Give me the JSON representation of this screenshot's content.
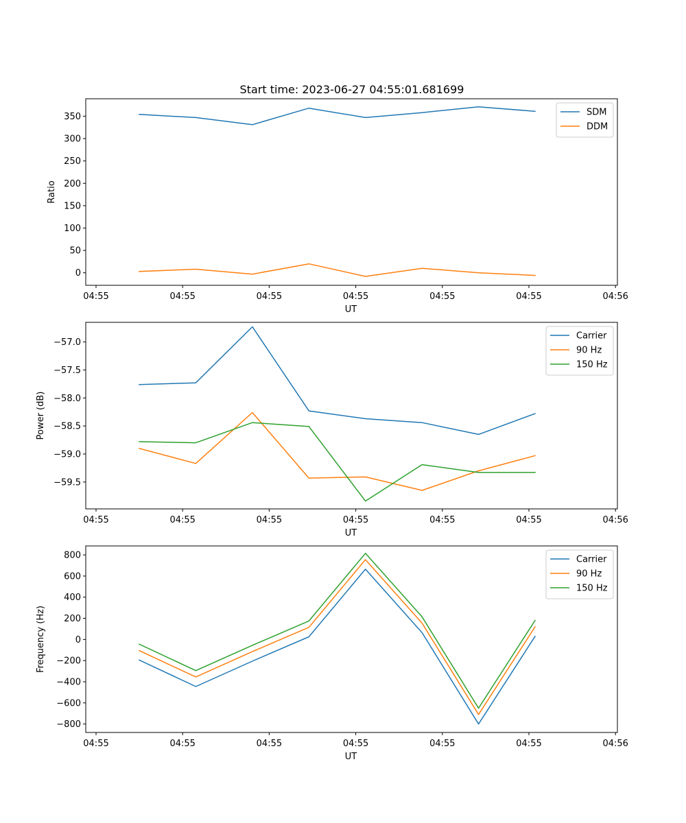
{
  "title": "Start time: 2023-06-27 04:55:01.681699",
  "chart_data": [
    {
      "type": "line",
      "xlabel": "UT",
      "ylabel": "Ratio",
      "x_tick_labels": [
        "04:55",
        "04:55",
        "04:55",
        "04:55",
        "04:55",
        "04:55",
        "04:56"
      ],
      "ylim": [
        -28,
        389
      ],
      "yticks": [
        0,
        50,
        100,
        150,
        200,
        250,
        300,
        350
      ],
      "y_tick_labels": [
        "0",
        "50",
        "100",
        "150",
        "200",
        "250",
        "300",
        "350"
      ],
      "legend_position": "top-right",
      "series": [
        {
          "name": "SDM",
          "color": "#1f77b4",
          "values": [
            354,
            347,
            331,
            368,
            347,
            358,
            371,
            361
          ]
        },
        {
          "name": "DDM",
          "color": "#ff7f0e",
          "values": [
            3,
            8,
            -3,
            20,
            -8,
            10,
            0,
            -6
          ]
        }
      ]
    },
    {
      "type": "line",
      "xlabel": "UT",
      "ylabel": "Power (dB)",
      "x_tick_labels": [
        "04:55",
        "04:55",
        "04:55",
        "04:55",
        "04:55",
        "04:55",
        "04:56"
      ],
      "ylim": [
        -59.98,
        -56.65
      ],
      "yticks": [
        -59.5,
        -59.0,
        -58.5,
        -58.0,
        -57.5,
        -57.0
      ],
      "y_tick_labels": [
        "−59.5",
        "−59.0",
        "−58.5",
        "−58.0",
        "−57.5",
        "−57.0"
      ],
      "legend_position": "top-right",
      "series": [
        {
          "name": "Carrier",
          "color": "#1f77b4",
          "values": [
            -57.76,
            -57.73,
            -56.73,
            -58.23,
            -58.37,
            -58.44,
            -58.65,
            -58.28
          ]
        },
        {
          "name": "90 Hz",
          "color": "#ff7f0e",
          "values": [
            -58.9,
            -59.17,
            -58.26,
            -59.43,
            -59.41,
            -59.65,
            -59.3,
            -59.03
          ]
        },
        {
          "name": "150 Hz",
          "color": "#2ca02c",
          "values": [
            -58.78,
            -58.8,
            -58.44,
            -58.51,
            -59.84,
            -59.19,
            -59.33,
            -59.33
          ]
        }
      ]
    },
    {
      "type": "line",
      "xlabel": "UT",
      "ylabel": "Frequency (Hz)",
      "x_tick_labels": [
        "04:55",
        "04:55",
        "04:55",
        "04:55",
        "04:55",
        "04:55",
        "04:56"
      ],
      "ylim": [
        -880,
        885
      ],
      "yticks": [
        -800,
        -600,
        -400,
        -200,
        0,
        200,
        400,
        600,
        800
      ],
      "y_tick_labels": [
        "−800",
        "−600",
        "−400",
        "−200",
        "0",
        "200",
        "400",
        "600",
        "800"
      ],
      "legend_position": "top-right",
      "series": [
        {
          "name": "Carrier",
          "color": "#1f77b4",
          "values": [
            -195,
            -445,
            -205,
            25,
            665,
            65,
            -800,
            30
          ]
        },
        {
          "name": "90 Hz",
          "color": "#ff7f0e",
          "values": [
            -105,
            -355,
            -115,
            115,
            755,
            155,
            -710,
            120
          ]
        },
        {
          "name": "150 Hz",
          "color": "#2ca02c",
          "values": [
            -45,
            -295,
            -55,
            175,
            815,
            215,
            -650,
            180
          ]
        }
      ]
    }
  ]
}
